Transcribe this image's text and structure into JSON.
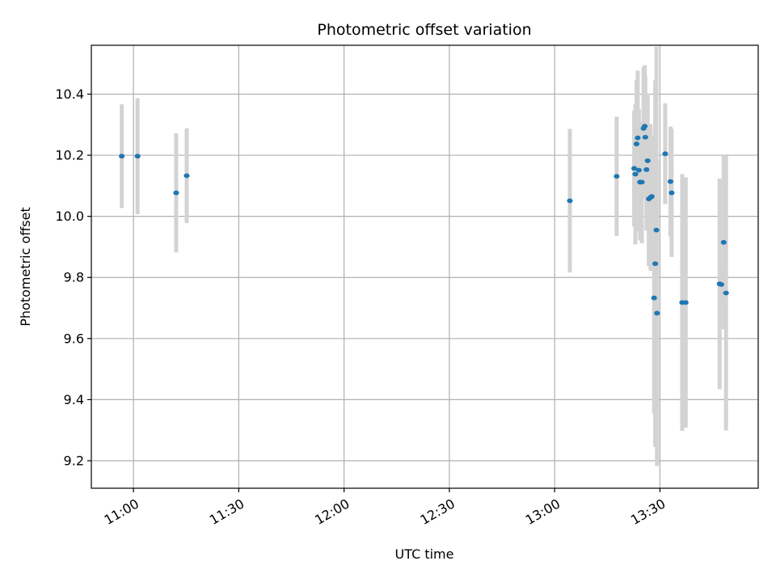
{
  "chart_data": {
    "type": "scatter",
    "title": "Photometric offset variation",
    "xlabel": "UTC time",
    "ylabel": "Photometric offset",
    "x_ticks": [
      "11:00",
      "11:30",
      "12:00",
      "12:30",
      "13:00",
      "13:30"
    ],
    "y_ticks": [
      "9.2",
      "9.4",
      "9.6",
      "9.8",
      "10.0",
      "10.2",
      "10.4"
    ],
    "xlim": [
      "10:48",
      "13:58"
    ],
    "ylim": [
      9.11,
      10.56
    ],
    "grid": true,
    "colors": {
      "point": "#1f77b4",
      "errorbar": "#d3d3d3",
      "grid": "#b0b0b0"
    },
    "points": [
      {
        "x": "10:56:40",
        "y": 10.197,
        "err": 0.17
      },
      {
        "x": "11:01:10",
        "y": 10.197,
        "err": 0.19
      },
      {
        "x": "11:12:10",
        "y": 10.077,
        "err": 0.195
      },
      {
        "x": "11:15:10",
        "y": 10.133,
        "err": 0.155
      },
      {
        "x": "13:04:20",
        "y": 10.051,
        "err": 0.235
      },
      {
        "x": "13:17:40",
        "y": 10.131,
        "err": 0.195
      },
      {
        "x": "13:22:40",
        "y": 10.157,
        "err": 0.19
      },
      {
        "x": "13:23:00",
        "y": 10.138,
        "err": 0.23
      },
      {
        "x": "13:23:20",
        "y": 10.237,
        "err": 0.21
      },
      {
        "x": "13:23:40",
        "y": 10.257,
        "err": 0.22
      },
      {
        "x": "13:24:00",
        "y": 10.151,
        "err": 0.2
      },
      {
        "x": "13:24:20",
        "y": 10.112,
        "err": 0.19
      },
      {
        "x": "13:24:50",
        "y": 10.112,
        "err": 0.2
      },
      {
        "x": "13:25:20",
        "y": 10.288,
        "err": 0.2
      },
      {
        "x": "13:25:40",
        "y": 10.295,
        "err": 0.2
      },
      {
        "x": "13:25:50",
        "y": 10.259,
        "err": 0.2
      },
      {
        "x": "13:26:10",
        "y": 10.153,
        "err": 0.2
      },
      {
        "x": "13:26:30",
        "y": 10.182,
        "err": 0.22
      },
      {
        "x": "13:26:50",
        "y": 10.057,
        "err": 0.22
      },
      {
        "x": "13:27:20",
        "y": 10.062,
        "err": 0.24
      },
      {
        "x": "13:27:40",
        "y": 10.065,
        "err": 0.2
      },
      {
        "x": "13:28:20",
        "y": 9.733,
        "err": 0.38
      },
      {
        "x": "13:28:40",
        "y": 9.845,
        "err": 0.6
      },
      {
        "x": "13:29:00",
        "y": 9.955,
        "err": 0.6
      },
      {
        "x": "13:29:10",
        "y": 9.683,
        "err": 0.5
      },
      {
        "x": "13:31:30",
        "y": 10.205,
        "err": 0.165
      },
      {
        "x": "13:33:00",
        "y": 10.114,
        "err": 0.18
      },
      {
        "x": "13:33:20",
        "y": 10.077,
        "err": 0.21
      },
      {
        "x": "13:36:20",
        "y": 9.718,
        "err": 0.42
      },
      {
        "x": "13:37:20",
        "y": 9.718,
        "err": 0.41
      },
      {
        "x": "13:47:00",
        "y": 9.779,
        "err": 0.345
      },
      {
        "x": "13:47:30",
        "y": 9.777,
        "err": 0.08
      },
      {
        "x": "13:48:10",
        "y": 9.915,
        "err": 0.285
      },
      {
        "x": "13:48:50",
        "y": 9.749,
        "err": 0.45
      }
    ]
  }
}
